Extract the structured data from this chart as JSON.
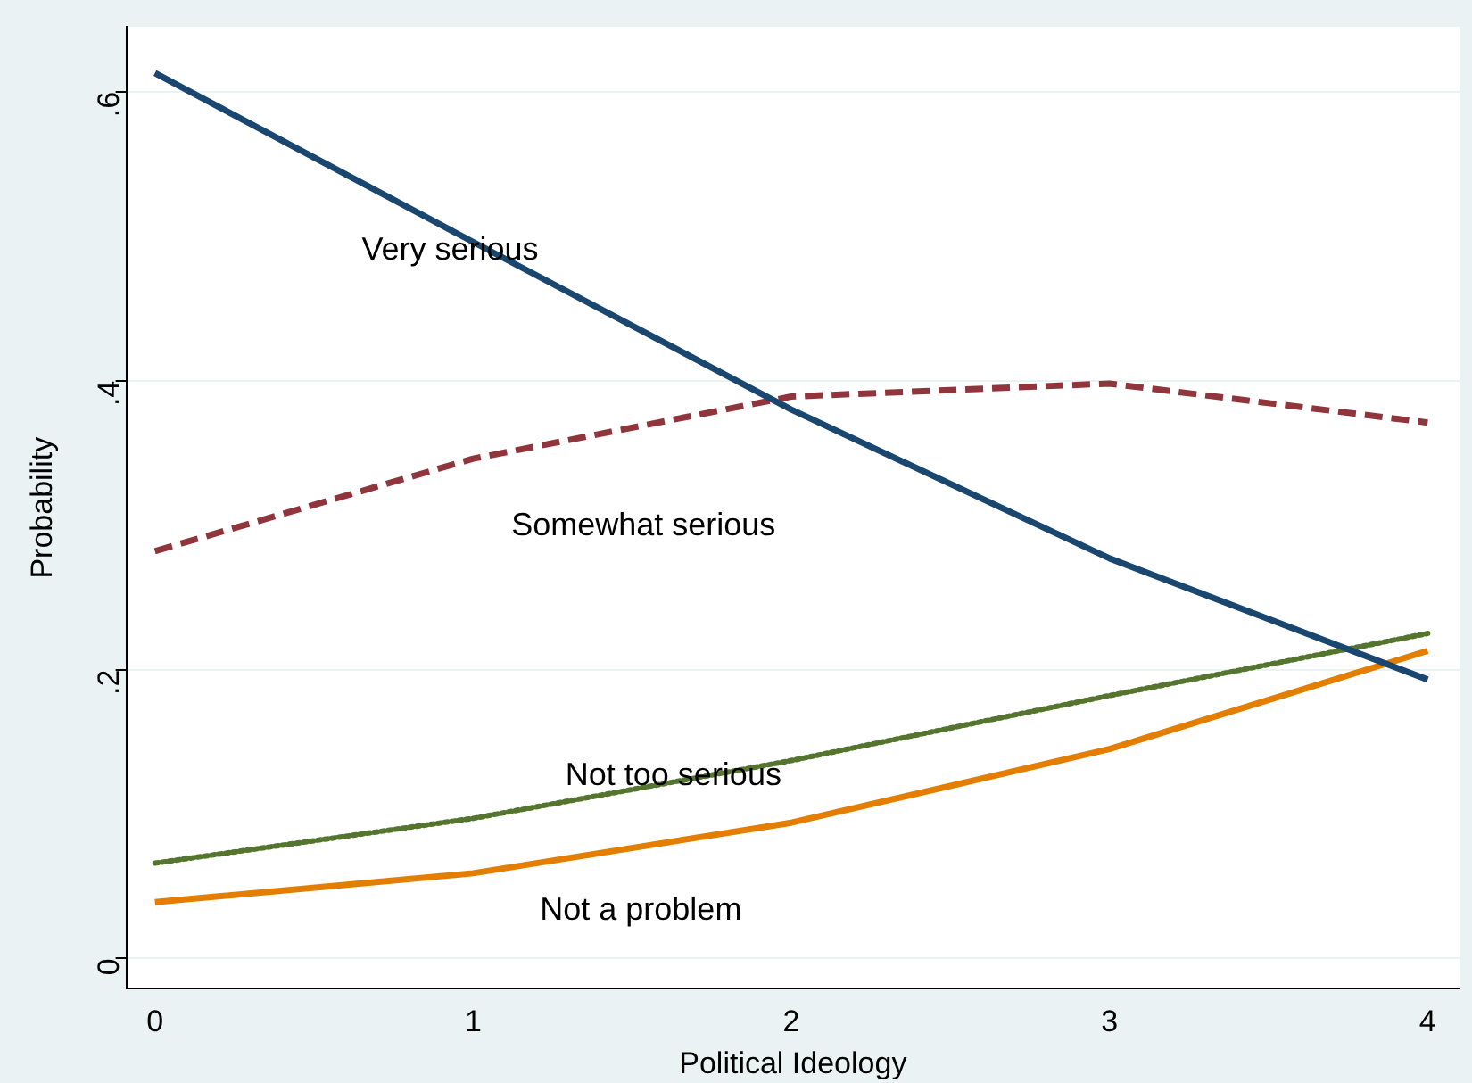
{
  "chart_data": {
    "type": "line",
    "xlabel": "Political Ideology",
    "ylabel": "Probability",
    "x": [
      0,
      1,
      2,
      3,
      4
    ],
    "series": [
      {
        "name": "Very serious",
        "color": "#1a476f",
        "values": [
          0.613,
          0.496,
          0.38,
          0.277,
          0.193
        ],
        "line_style": "solid"
      },
      {
        "name": "Somewhat serious",
        "color": "#90353b",
        "values": [
          0.282,
          0.346,
          0.389,
          0.398,
          0.371
        ],
        "line_style": "dashed"
      },
      {
        "name": "Not too serious",
        "color": "#55752f",
        "values": [
          0.066,
          0.097,
          0.137,
          0.182,
          0.225
        ],
        "line_style": "dotted"
      },
      {
        "name": "Not a problem",
        "color": "#e37e00",
        "values": [
          0.039,
          0.059,
          0.094,
          0.145,
          0.213
        ],
        "line_style": "solid"
      }
    ],
    "xlim": [
      -0.09,
      4.1
    ],
    "xticks": [
      0,
      1,
      2,
      3,
      4
    ],
    "ylim": [
      -0.021,
      0.645
    ],
    "yticks": [
      {
        "value": 0,
        "label": "0"
      },
      {
        "value": 0.2,
        "label": ".2"
      },
      {
        "value": 0.4,
        "label": ".4"
      },
      {
        "value": 0.6,
        "label": ".6"
      }
    ],
    "grid": "y",
    "legend": false,
    "marker": "none"
  }
}
